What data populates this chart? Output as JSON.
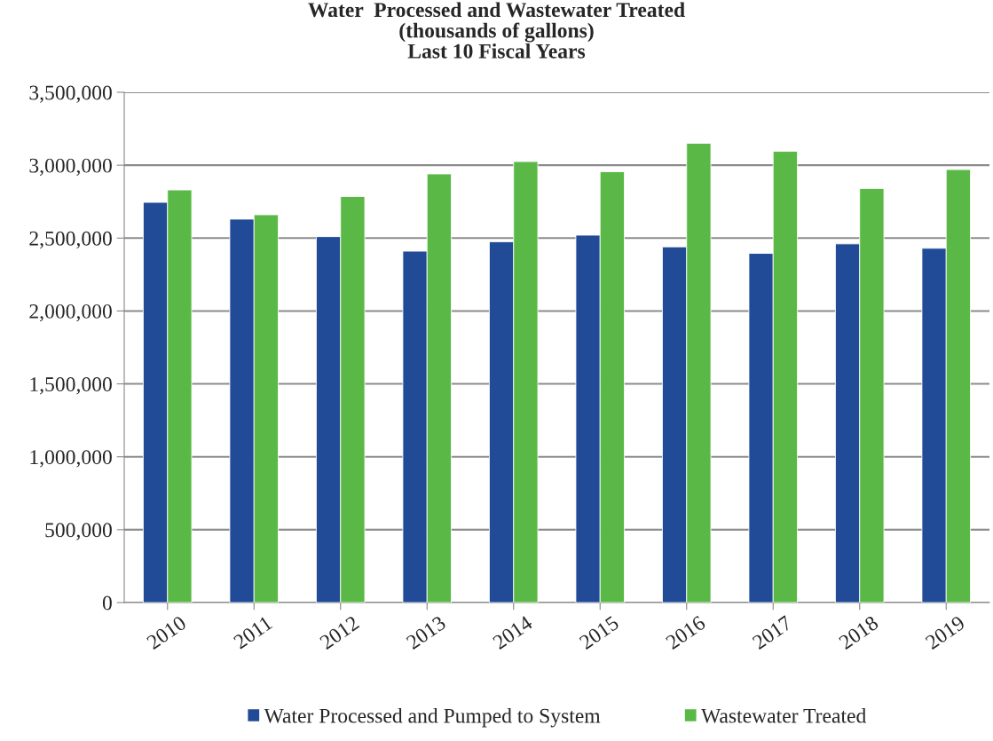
{
  "chart_data": {
    "type": "bar",
    "title": "Water  Processed and Wastewater Treated\n(thousands of gallons)\nLast 10 Fiscal Years",
    "categories": [
      "2010",
      "2011",
      "2012",
      "2013",
      "2014",
      "2015",
      "2016",
      "2017",
      "2018",
      "2019"
    ],
    "series": [
      {
        "name": "Water Processed and Pumped to System",
        "color": "#214a97",
        "values": [
          2745000,
          2630000,
          2510000,
          2410000,
          2475000,
          2520000,
          2440000,
          2395000,
          2460000,
          2430000
        ]
      },
      {
        "name": "Wastewater Treated",
        "color": "#5ab946",
        "values": [
          2830000,
          2660000,
          2785000,
          2940000,
          3025000,
          2955000,
          3150000,
          3095000,
          2840000,
          2970000
        ]
      }
    ],
    "ylim": [
      0,
      3500000
    ],
    "yticks": [
      {
        "value": 0,
        "label": "0"
      },
      {
        "value": 500000,
        "label": "500,000"
      },
      {
        "value": 1000000,
        "label": "1,000,000"
      },
      {
        "value": 1500000,
        "label": "1,500,000"
      },
      {
        "value": 2000000,
        "label": "2,000,000"
      },
      {
        "value": 2500000,
        "label": "2,500,000"
      },
      {
        "value": 3000000,
        "label": "3,000,000"
      },
      {
        "value": 3500000,
        "label": "3,500,000"
      }
    ],
    "grid": "y",
    "legend": "bottom"
  }
}
